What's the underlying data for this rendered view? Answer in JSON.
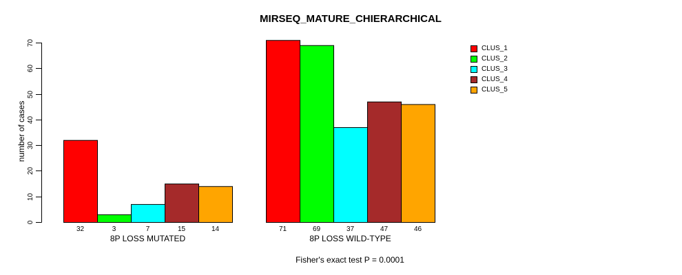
{
  "chart_data": {
    "type": "bar",
    "title": "MIRSEQ_MATURE_CHIERARCHICAL",
    "ylabel": "number of cases",
    "xlabel": "",
    "categories": [
      "8P LOSS MUTATED",
      "8P LOSS WILD-TYPE"
    ],
    "series": [
      {
        "name": "CLUS_1",
        "color": "#FF0000",
        "values": [
          32,
          71
        ]
      },
      {
        "name": "CLUS_2",
        "color": "#00FF00",
        "values": [
          3,
          69
        ]
      },
      {
        "name": "CLUS_3",
        "color": "#00FFFF",
        "values": [
          7,
          37
        ]
      },
      {
        "name": "CLUS_4",
        "color": "#A52A2A",
        "values": [
          15,
          47
        ]
      },
      {
        "name": "CLUS_5",
        "color": "#FFA500",
        "values": [
          14,
          46
        ]
      }
    ],
    "yticks": [
      0,
      10,
      20,
      30,
      40,
      50,
      60,
      70
    ],
    "ylim": [
      0,
      70
    ],
    "grid": false,
    "bar_borders": "#000000",
    "show_bar_values": true,
    "legend_position": "top-right",
    "annotation": "Fisher's exact test P = 0.0001"
  }
}
